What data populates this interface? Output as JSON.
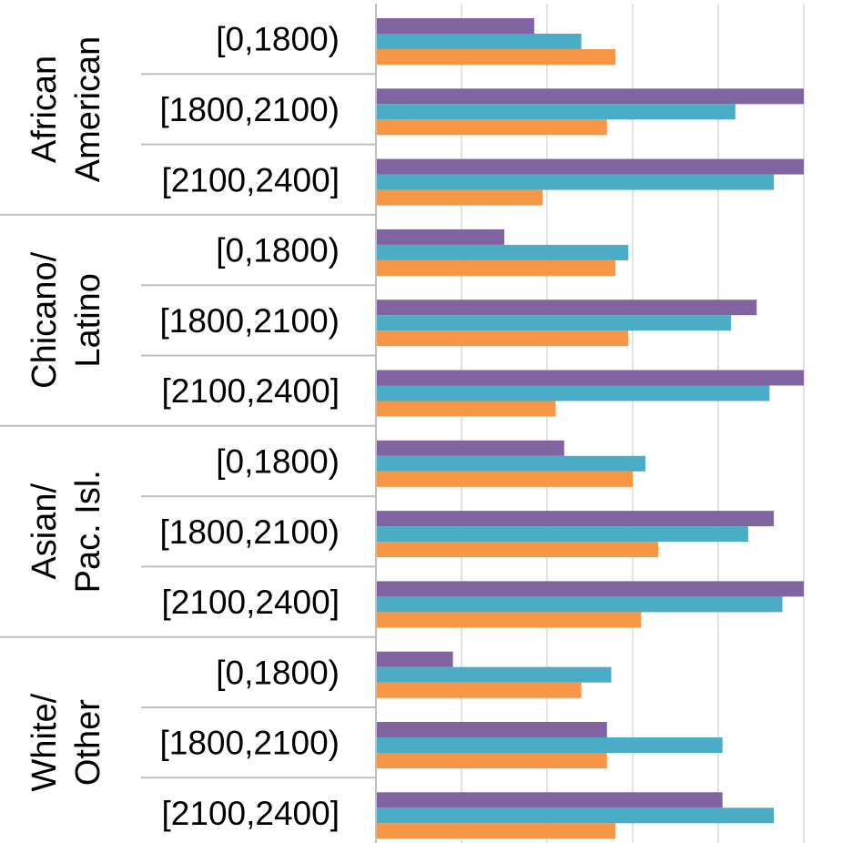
{
  "chart_data": {
    "type": "bar",
    "orientation": "horizontal",
    "title": "",
    "xlabel": "",
    "ylabel": "",
    "xlim": [
      0,
      1
    ],
    "grid": true,
    "legend": "none",
    "groups": [
      {
        "label": "African\nAmerican",
        "categories": [
          "[0,1800)",
          "[1800,2100)",
          "[2100,2400]"
        ]
      },
      {
        "label": "Chicano/\nLatino",
        "categories": [
          "[0,1800)",
          "[1800,2100)",
          "[2100,2400]"
        ]
      },
      {
        "label": "Asian/\nPac. Isl.",
        "categories": [
          "[0,1800)",
          "[1800,2100)",
          "[2100,2400]"
        ]
      },
      {
        "label": "White/\nOther",
        "categories": [
          "[0,1800)",
          "[1800,2100)",
          "[2100,2400]"
        ]
      }
    ],
    "series": [
      {
        "color": "#8064A2",
        "values": [
          0.37,
          1.0,
          1.0,
          0.3,
          0.89,
          1.0,
          0.44,
          0.93,
          1.0,
          0.18,
          0.54,
          0.81
        ]
      },
      {
        "color": "#4BACC6",
        "values": [
          0.48,
          0.84,
          0.93,
          0.59,
          0.83,
          0.92,
          0.63,
          0.87,
          0.95,
          0.55,
          0.81,
          0.93
        ]
      },
      {
        "color": "#F79646",
        "values": [
          0.56,
          0.54,
          0.39,
          0.56,
          0.59,
          0.42,
          0.6,
          0.66,
          0.62,
          0.48,
          0.54,
          0.56
        ]
      }
    ]
  }
}
